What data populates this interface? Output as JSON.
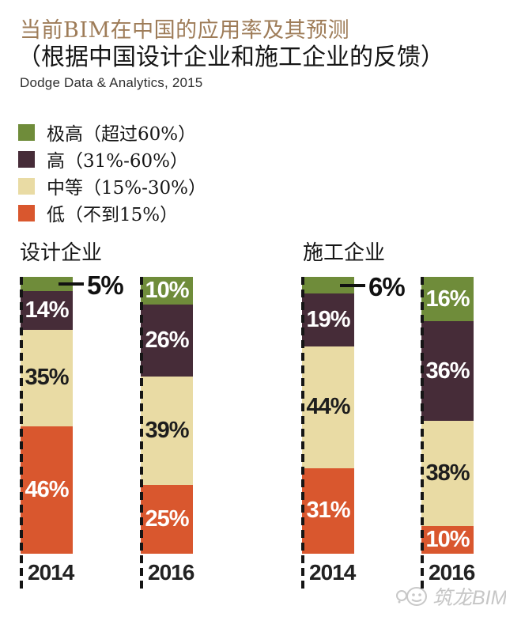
{
  "header": {
    "title": "当前BIM在中国的应用率及其预测",
    "subtitle": "（根据中国设计企业和施工企业的反馈）",
    "source": "Dodge Data & Analytics, 2015"
  },
  "colors": {
    "very_high": "#6f8c3a",
    "high": "#462c38",
    "medium": "#e9dba4",
    "low": "#d9572e",
    "title_text": "#9e7c58",
    "body_text": "#161616",
    "label_on_medium": "#1d1d1d",
    "label_on_dark": "#ffffff",
    "watermark": "#c6c6c6"
  },
  "legend": {
    "items": [
      {
        "label": "极高（超过60%）",
        "color_key": "very_high"
      },
      {
        "label": "高（31%-60%）",
        "color_key": "high"
      },
      {
        "label": "中等（15%-30%）",
        "color_key": "medium"
      },
      {
        "label": "低（不到15%）",
        "color_key": "low"
      }
    ]
  },
  "chart_data": {
    "type": "bar",
    "stacked": true,
    "unit": "%",
    "value_range": [
      0,
      100
    ],
    "segment_order": [
      "very_high",
      "high",
      "medium",
      "low"
    ],
    "segment_names": {
      "very_high": "极高（超过60%）",
      "high": "高（31%-60%）",
      "medium": "中等（15%-30%）",
      "low": "低（不到15%）"
    },
    "groups": [
      {
        "label": "设计企业",
        "bars": [
          {
            "year": "2014",
            "values": {
              "very_high": 5,
              "high": 14,
              "medium": 35,
              "low": 46
            },
            "callout_segment": "very_high"
          },
          {
            "year": "2016",
            "values": {
              "very_high": 10,
              "high": 26,
              "medium": 39,
              "low": 25
            }
          }
        ]
      },
      {
        "label": "施工企业",
        "bars": [
          {
            "year": "2014",
            "values": {
              "very_high": 6,
              "high": 19,
              "medium": 44,
              "low": 31
            },
            "callout_segment": "very_high"
          },
          {
            "year": "2016",
            "values": {
              "very_high": 16,
              "high": 36,
              "medium": 38,
              "low": 10
            }
          }
        ]
      }
    ]
  },
  "watermark": {
    "text": "筑龙BIM"
  }
}
